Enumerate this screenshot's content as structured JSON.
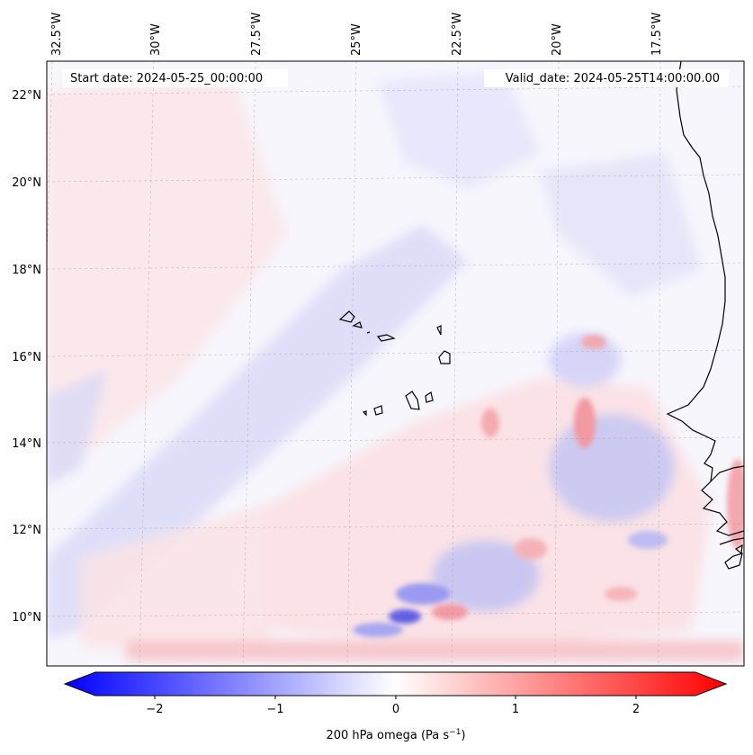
{
  "map": {
    "lon_labels": [
      "32.5°W",
      "30°W",
      "27.5°W",
      "25°W",
      "22.5°W",
      "20°W",
      "17.5°W"
    ],
    "lat_labels": [
      "22°N",
      "20°N",
      "18°N",
      "16°N",
      "14°N",
      "12°N",
      "10°N"
    ],
    "start_date": "Start date: 2024-05-25_00:00:00",
    "valid_date": "Valid_date: 2024-05-25T14:00:00.00"
  },
  "colorbar": {
    "tick_labels": [
      "−2",
      "−1",
      "0",
      "1",
      "2"
    ],
    "label_main": "200 hPa omega (Pa s",
    "label_sup": "−1",
    "label_end": ")",
    "colors": {
      "min": "#0000ff",
      "mid": "#ffffff",
      "max": "#ff0000"
    }
  }
}
